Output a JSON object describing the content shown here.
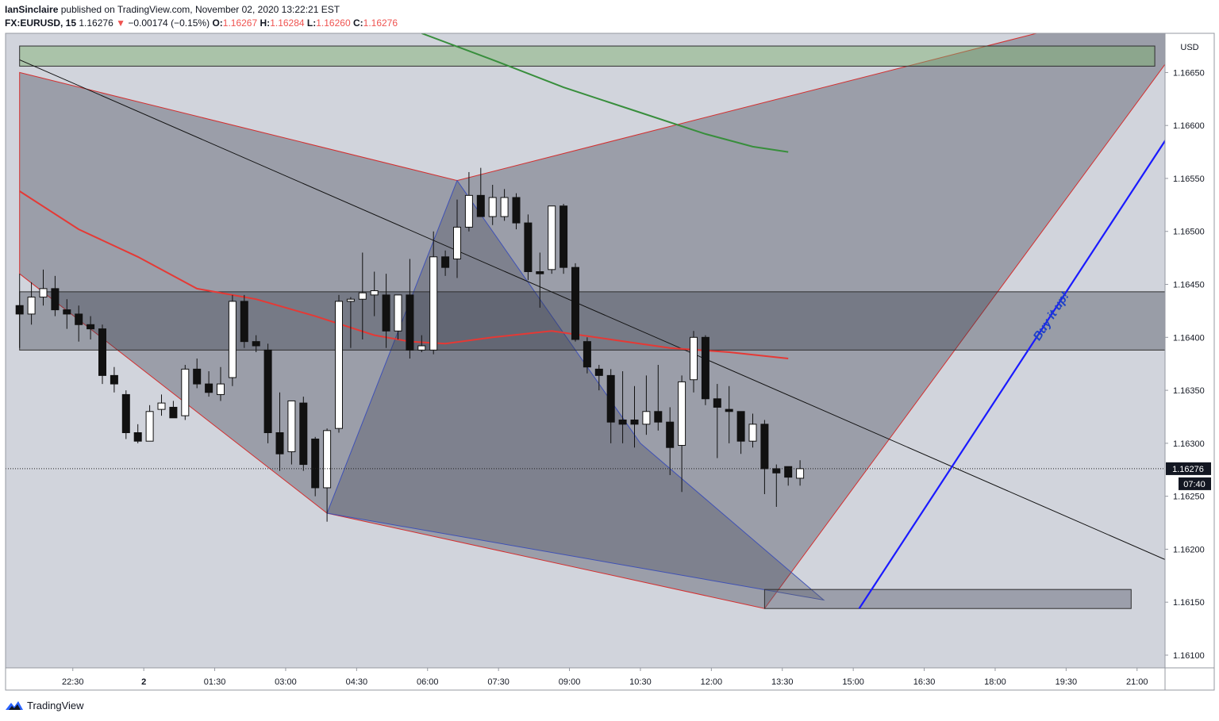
{
  "header": {
    "author": "IanSinclaire",
    "published_text": "published on TradingView.com, November 02, 2020 13:22:21 EST",
    "symbol": "FX:EURUSD, 15",
    "last_price": "1.16276",
    "change_arrow": "▼",
    "change": "−0.00174 (−0.15%)",
    "ohlc": [
      {
        "label": "O:",
        "value": "1.16267"
      },
      {
        "label": "H:",
        "value": "1.16284"
      },
      {
        "label": "L:",
        "value": "1.16260"
      },
      {
        "label": "C:",
        "value": "1.16276"
      }
    ]
  },
  "footer": {
    "brand": "TradingView",
    "logo_icon": "tradingview-logo-icon"
  },
  "chart_data": {
    "type": "candlestick",
    "currency": "USD",
    "ylim": [
      1.16088,
      1.16687
    ],
    "y_ticks": [
      "1.16650",
      "1.16600",
      "1.16550",
      "1.16500",
      "1.16450",
      "1.16400",
      "1.16350",
      "1.16300",
      "1.16250",
      "1.16200",
      "1.16150",
      "1.16100"
    ],
    "x_ticks": [
      {
        "label": "22:30",
        "t": 4.5
      },
      {
        "label": "2",
        "t": 10.5
      },
      {
        "label": "01:30",
        "t": 16.5
      },
      {
        "label": "03:00",
        "t": 22.5
      },
      {
        "label": "04:30",
        "t": 28.5
      },
      {
        "label": "06:00",
        "t": 34.5
      },
      {
        "label": "07:30",
        "t": 40.5
      },
      {
        "label": "09:00",
        "t": 46.5
      },
      {
        "label": "10:30",
        "t": 52.5
      },
      {
        "label": "12:00",
        "t": 58.5
      },
      {
        "label": "13:30",
        "t": 64.5
      },
      {
        "label": "15:00",
        "t": 70.5
      },
      {
        "label": "16:30",
        "t": 76.5
      },
      {
        "label": "18:00",
        "t": 82.5
      },
      {
        "label": "19:30",
        "t": 88.5
      },
      {
        "label": "21:00",
        "t": 94.5
      }
    ],
    "last_price_label": "1.16276",
    "countdown": "07:40",
    "candles": [
      {
        "o": 1.1643,
        "h": 1.1646,
        "l": 1.1639,
        "c": 1.16422
      },
      {
        "o": 1.16422,
        "h": 1.16452,
        "l": 1.16412,
        "c": 1.16438
      },
      {
        "o": 1.16438,
        "h": 1.16464,
        "l": 1.1643,
        "c": 1.16446
      },
      {
        "o": 1.16446,
        "h": 1.16458,
        "l": 1.1642,
        "c": 1.16426
      },
      {
        "o": 1.16426,
        "h": 1.16436,
        "l": 1.16408,
        "c": 1.16422
      },
      {
        "o": 1.16422,
        "h": 1.1643,
        "l": 1.16396,
        "c": 1.16412
      },
      {
        "o": 1.16412,
        "h": 1.1642,
        "l": 1.16398,
        "c": 1.16408
      },
      {
        "o": 1.16408,
        "h": 1.16412,
        "l": 1.16356,
        "c": 1.16364
      },
      {
        "o": 1.16364,
        "h": 1.16372,
        "l": 1.16348,
        "c": 1.16356
      },
      {
        "o": 1.16346,
        "h": 1.1635,
        "l": 1.16304,
        "c": 1.1631
      },
      {
        "o": 1.1631,
        "h": 1.16318,
        "l": 1.163,
        "c": 1.16302
      },
      {
        "o": 1.16302,
        "h": 1.16336,
        "l": 1.16302,
        "c": 1.1633
      },
      {
        "o": 1.16332,
        "h": 1.16346,
        "l": 1.16326,
        "c": 1.16338
      },
      {
        "o": 1.16334,
        "h": 1.1634,
        "l": 1.16324,
        "c": 1.16324
      },
      {
        "o": 1.16326,
        "h": 1.16374,
        "l": 1.16322,
        "c": 1.1637
      },
      {
        "o": 1.1637,
        "h": 1.1638,
        "l": 1.16352,
        "c": 1.16356
      },
      {
        "o": 1.16356,
        "h": 1.16368,
        "l": 1.16344,
        "c": 1.16348
      },
      {
        "o": 1.16346,
        "h": 1.16372,
        "l": 1.1634,
        "c": 1.16356
      },
      {
        "o": 1.16362,
        "h": 1.1644,
        "l": 1.16354,
        "c": 1.16434
      },
      {
        "o": 1.16434,
        "h": 1.1644,
        "l": 1.1639,
        "c": 1.16396
      },
      {
        "o": 1.16396,
        "h": 1.16402,
        "l": 1.16386,
        "c": 1.16392
      },
      {
        "o": 1.16388,
        "h": 1.16394,
        "l": 1.163,
        "c": 1.1631
      },
      {
        "o": 1.1631,
        "h": 1.16348,
        "l": 1.16274,
        "c": 1.1629
      },
      {
        "o": 1.16292,
        "h": 1.1634,
        "l": 1.1628,
        "c": 1.1634
      },
      {
        "o": 1.16338,
        "h": 1.16344,
        "l": 1.16274,
        "c": 1.1628
      },
      {
        "o": 1.16304,
        "h": 1.16306,
        "l": 1.1625,
        "c": 1.16258
      },
      {
        "o": 1.16258,
        "h": 1.16314,
        "l": 1.16226,
        "c": 1.16312
      },
      {
        "o": 1.16314,
        "h": 1.1644,
        "l": 1.1631,
        "c": 1.16434
      },
      {
        "o": 1.16434,
        "h": 1.16438,
        "l": 1.1639,
        "c": 1.16436
      },
      {
        "o": 1.16436,
        "h": 1.1648,
        "l": 1.16398,
        "c": 1.16442
      },
      {
        "o": 1.1644,
        "h": 1.16462,
        "l": 1.1642,
        "c": 1.16444
      },
      {
        "o": 1.1644,
        "h": 1.1646,
        "l": 1.1639,
        "c": 1.16406
      },
      {
        "o": 1.16406,
        "h": 1.1644,
        "l": 1.16398,
        "c": 1.1644
      },
      {
        "o": 1.1644,
        "h": 1.16474,
        "l": 1.1638,
        "c": 1.16388
      },
      {
        "o": 1.16388,
        "h": 1.16402,
        "l": 1.16386,
        "c": 1.16392
      },
      {
        "o": 1.16388,
        "h": 1.165,
        "l": 1.16384,
        "c": 1.16476
      },
      {
        "o": 1.16476,
        "h": 1.16482,
        "l": 1.16458,
        "c": 1.16466
      },
      {
        "o": 1.16474,
        "h": 1.1653,
        "l": 1.16456,
        "c": 1.16504
      },
      {
        "o": 1.16504,
        "h": 1.16556,
        "l": 1.165,
        "c": 1.16534
      },
      {
        "o": 1.16534,
        "h": 1.1656,
        "l": 1.16518,
        "c": 1.16514
      },
      {
        "o": 1.16514,
        "h": 1.16544,
        "l": 1.16506,
        "c": 1.16532
      },
      {
        "o": 1.16514,
        "h": 1.1654,
        "l": 1.1651,
        "c": 1.16532
      },
      {
        "o": 1.16532,
        "h": 1.16536,
        "l": 1.16502,
        "c": 1.16508
      },
      {
        "o": 1.16508,
        "h": 1.16516,
        "l": 1.16454,
        "c": 1.16462
      },
      {
        "o": 1.16462,
        "h": 1.1648,
        "l": 1.16428,
        "c": 1.1646
      },
      {
        "o": 1.16464,
        "h": 1.16524,
        "l": 1.1646,
        "c": 1.16524
      },
      {
        "o": 1.16524,
        "h": 1.16526,
        "l": 1.1646,
        "c": 1.16466
      },
      {
        "o": 1.16466,
        "h": 1.1647,
        "l": 1.16396,
        "c": 1.16398
      },
      {
        "o": 1.16396,
        "h": 1.164,
        "l": 1.16366,
        "c": 1.16372
      },
      {
        "o": 1.1637,
        "h": 1.16374,
        "l": 1.1635,
        "c": 1.16364
      },
      {
        "o": 1.16364,
        "h": 1.1637,
        "l": 1.163,
        "c": 1.1632
      },
      {
        "o": 1.16322,
        "h": 1.16368,
        "l": 1.163,
        "c": 1.16318
      },
      {
        "o": 1.16322,
        "h": 1.16354,
        "l": 1.16296,
        "c": 1.16318
      },
      {
        "o": 1.16318,
        "h": 1.16364,
        "l": 1.16308,
        "c": 1.1633
      },
      {
        "o": 1.1633,
        "h": 1.16374,
        "l": 1.16312,
        "c": 1.1632
      },
      {
        "o": 1.1632,
        "h": 1.16334,
        "l": 1.1627,
        "c": 1.16296
      },
      {
        "o": 1.16298,
        "h": 1.16364,
        "l": 1.16254,
        "c": 1.16358
      },
      {
        "o": 1.1636,
        "h": 1.16406,
        "l": 1.16348,
        "c": 1.164
      },
      {
        "o": 1.164,
        "h": 1.16402,
        "l": 1.16336,
        "c": 1.16342
      },
      {
        "o": 1.16342,
        "h": 1.16356,
        "l": 1.16286,
        "c": 1.16334
      },
      {
        "o": 1.16332,
        "h": 1.16354,
        "l": 1.163,
        "c": 1.1633
      },
      {
        "o": 1.1633,
        "h": 1.1633,
        "l": 1.1629,
        "c": 1.16302
      },
      {
        "o": 1.16302,
        "h": 1.16328,
        "l": 1.16296,
        "c": 1.16318
      },
      {
        "o": 1.16318,
        "h": 1.16322,
        "l": 1.16252,
        "c": 1.16276
      },
      {
        "o": 1.16276,
        "h": 1.1628,
        "l": 1.1624,
        "c": 1.16272
      },
      {
        "o": 1.16278,
        "h": 1.16278,
        "l": 1.1626,
        "c": 1.16268
      },
      {
        "o": 1.16267,
        "h": 1.16284,
        "l": 1.1626,
        "c": 1.16276
      }
    ],
    "moving_averages": [
      {
        "color": "#e53935",
        "points": [
          [
            0,
            1.16538
          ],
          [
            5,
            1.16502
          ],
          [
            10,
            1.16476
          ],
          [
            15,
            1.16446
          ],
          [
            20,
            1.16436
          ],
          [
            25,
            1.1642
          ],
          [
            30,
            1.16402
          ],
          [
            33,
            1.16396
          ],
          [
            36,
            1.16394
          ],
          [
            40,
            1.164
          ],
          [
            45,
            1.16406
          ],
          [
            50,
            1.16398
          ],
          [
            55,
            1.1639
          ],
          [
            60,
            1.16386
          ],
          [
            65,
            1.1638
          ]
        ]
      },
      {
        "color": "#388e3c",
        "points": [
          [
            34,
            1.16687
          ],
          [
            40,
            1.16662
          ],
          [
            46,
            1.16636
          ],
          [
            52,
            1.16614
          ],
          [
            58,
            1.16592
          ],
          [
            62,
            1.1658
          ],
          [
            65,
            1.16575
          ]
        ]
      }
    ],
    "drawings": {
      "black_trendline": [
        [
          0,
          1.16662
        ],
        [
          100,
          1.16175
        ]
      ],
      "red_triangle": [
        [
          0,
          1.1665
        ],
        [
          37,
          1.16548
        ],
        [
          86,
          1.16687
        ],
        [
          98.8,
          1.16687
        ],
        [
          63,
          1.16144
        ],
        [
          26,
          1.16234
        ],
        [
          0,
          1.1646
        ]
      ],
      "pattern_blue": [
        [
          26,
          1.16234
        ],
        [
          37,
          1.16548
        ],
        [
          52.5,
          1.163
        ],
        [
          68,
          1.16152
        ],
        [
          26,
          1.16234
        ]
      ],
      "blue_arrow": [
        [
          71,
          1.16144
        ],
        [
          100,
          1.16639
        ]
      ],
      "zones": [
        {
          "t0": 0,
          "t1": 96,
          "p_top": 1.16675,
          "p_bot": 1.16656,
          "fill": "rgba(122,176,106,0.45)",
          "stroke": "#2e2e2e"
        },
        {
          "t0": 0,
          "t1": 98,
          "p_top": 1.16443,
          "p_bot": 1.16388,
          "fill": "rgba(50,55,70,0.35)",
          "stroke": "#2e2e2e"
        },
        {
          "t0": 63,
          "t1": 94,
          "p_top": 1.16162,
          "p_bot": 1.16144,
          "fill": "rgba(90,95,110,0.45)",
          "stroke": "#2e2e2e"
        }
      ]
    },
    "annotation": {
      "text": "Buy it up!",
      "t": 87.5,
      "p": 1.16418,
      "color": "#1e40c8"
    }
  }
}
